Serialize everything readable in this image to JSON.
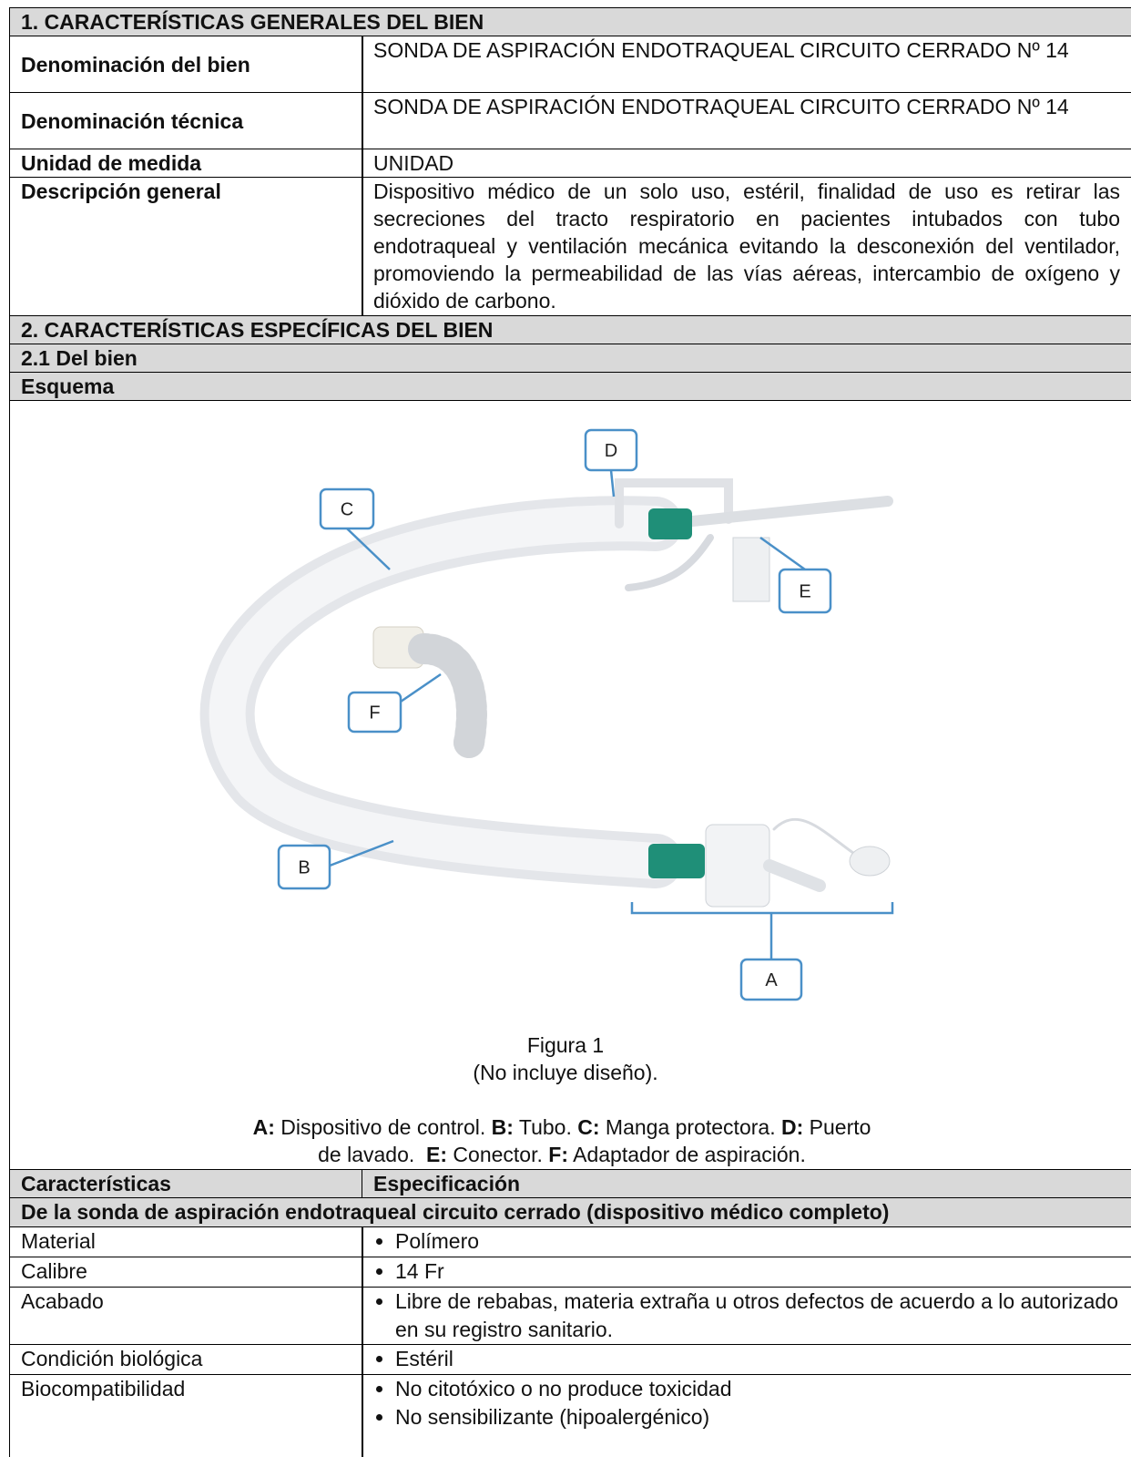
{
  "section1": {
    "title": "1. CARACTERÍSTICAS GENERALES DEL BIEN",
    "rows": [
      {
        "label": "Denominación del bien",
        "value": "SONDA DE ASPIRACIÓN ENDOTRAQUEAL CIRCUITO CERRADO Nº 14"
      },
      {
        "label": "Denominación técnica",
        "value": "SONDA DE ASPIRACIÓN ENDOTRAQUEAL CIRCUITO CERRADO Nº 14"
      },
      {
        "label": "Unidad de medida",
        "value": "UNIDAD"
      },
      {
        "label": "Descripción general",
        "value": "Dispositivo médico de un solo uso, estéril, finalidad de uso es retirar las secreciones del tracto respiratorio en pacientes intubados con tubo endotraqueal y ventilación mecánica evitando la desconexión del ventilador, promoviendo la permeabilidad de las vías aéreas, intercambio de oxígeno y dióxido de carbono."
      }
    ]
  },
  "section2": {
    "title": "2. CARACTERÍSTICAS ESPECÍFICAS DEL BIEN",
    "subsection": "2.1 Del bien",
    "schema": "Esquema",
    "figure": {
      "callouts": [
        "A",
        "B",
        "C",
        "D",
        "E",
        "F"
      ],
      "caption": "Figura 1",
      "note": "(No incluye diseño).",
      "legend": [
        {
          "key": "A:",
          "text": " Dispositivo de control. "
        },
        {
          "key": "B:",
          "text": " Tubo. "
        },
        {
          "key": "C:",
          "text": " Manga protectora. "
        },
        {
          "key": "D:",
          "text": " Puerto de lavado.  "
        },
        {
          "key": "E:",
          "text": " Conector. "
        },
        {
          "key": "F:",
          "text": " Adaptador de aspiración."
        }
      ]
    },
    "table": {
      "headers": [
        "Características",
        "Especificación"
      ],
      "group": "De la sonda de aspiración endotraqueal circuito cerrado (dispositivo médico completo)",
      "rows": [
        {
          "label": "Material",
          "items": [
            "Polímero"
          ]
        },
        {
          "label": "Calibre",
          "items": [
            "14 Fr"
          ]
        },
        {
          "label": "Acabado",
          "items": [
            "Libre de rebabas, materia extraña u otros defectos de acuerdo a lo autorizado en su registro sanitario."
          ]
        },
        {
          "label": "Condición biológica",
          "items": [
            "Estéril"
          ]
        },
        {
          "label": "Biocompatibilidad",
          "items": [
            "No citotóxico o no produce toxicidad",
            "No sensibilizante (hipoalergénico)"
          ]
        }
      ]
    }
  }
}
